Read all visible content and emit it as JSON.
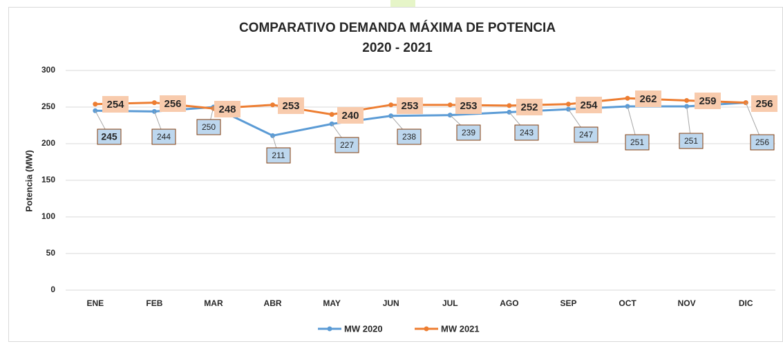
{
  "chart_data": {
    "type": "line",
    "title": "COMPARATIVO DEMANDA MÁXIMA DE POTENCIA",
    "subtitle": "2020 - 2021",
    "y_label": "Potencia (MW)",
    "categories": [
      "ENE",
      "FEB",
      "MAR",
      "ABR",
      "MAY",
      "JUN",
      "JUL",
      "AGO",
      "SEP",
      "OCT",
      "NOV",
      "DIC"
    ],
    "series": [
      {
        "name": "MW 2020",
        "color": "#5b9bd5",
        "values": [
          245,
          244,
          250,
          211,
          227,
          238,
          239,
          243,
          247,
          251,
          251,
          256
        ]
      },
      {
        "name": "MW 2021",
        "color": "#ed7d31",
        "values": [
          254,
          256,
          248,
          253,
          240,
          253,
          253,
          252,
          254,
          262,
          259,
          256
        ]
      }
    ],
    "ylim": [
      0,
      300
    ],
    "yticks": [
      0,
      50,
      100,
      150,
      200,
      250,
      300
    ],
    "grid": true,
    "legend": "bottom"
  }
}
